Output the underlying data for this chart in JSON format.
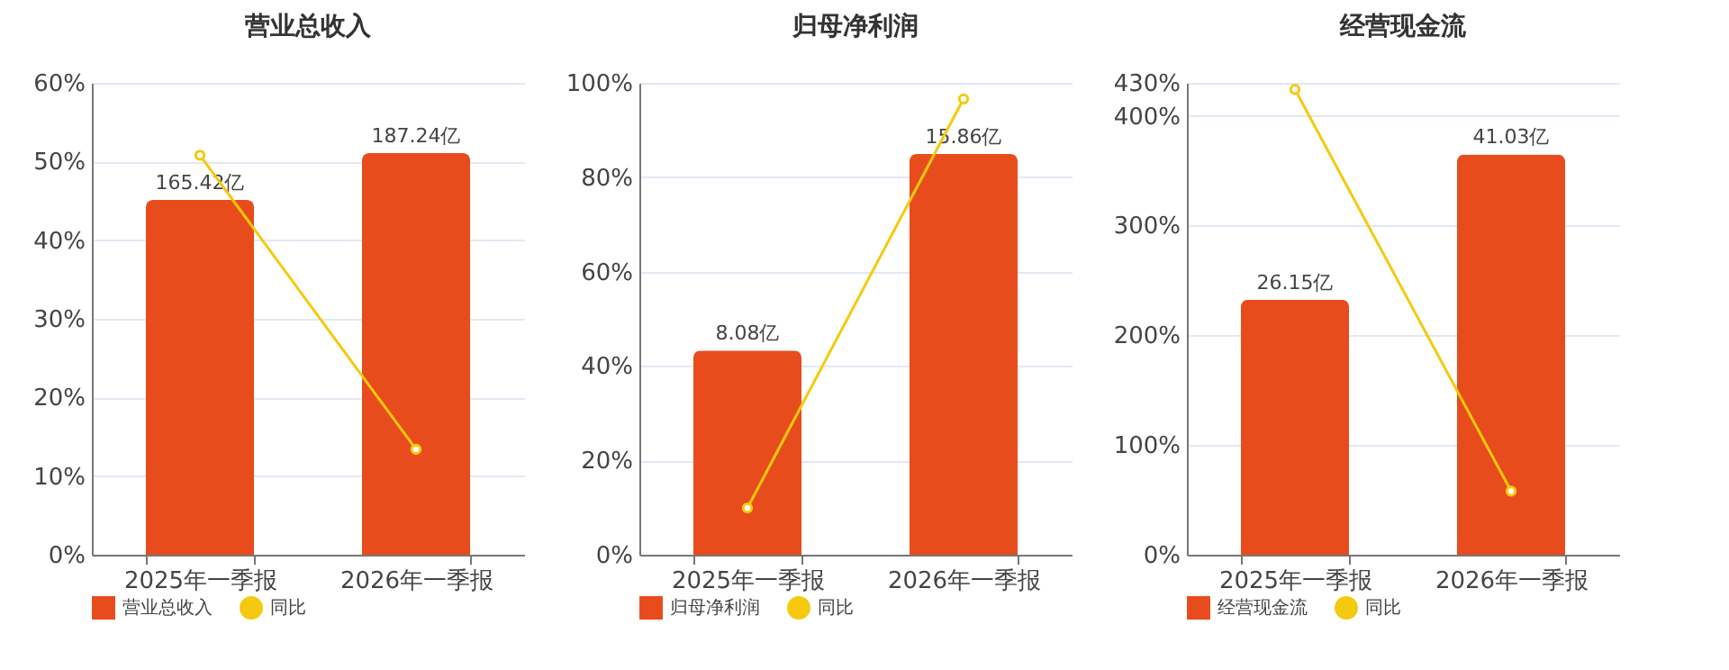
{
  "chart_data": [
    {
      "type": "bar",
      "title": "营业总收入",
      "categories": [
        "2025年一季报",
        "2026年一季报"
      ],
      "series": [
        {
          "name": "营业总收入",
          "color": "#e84c1c",
          "values": [
            165.42,
            187.24
          ],
          "value_labels": [
            "165.42亿",
            "187.24亿"
          ],
          "axis": "y2"
        },
        {
          "name": "同比",
          "type": "line",
          "color": "#f5c90f",
          "values": [
            50.8,
            13.4
          ]
        }
      ],
      "ylim": [
        0,
        60
      ],
      "yticks": [
        {
          "value": 0,
          "label": "0%"
        },
        {
          "value": 10,
          "label": "10%"
        },
        {
          "value": 20,
          "label": "20%"
        },
        {
          "value": 30,
          "label": "30%"
        },
        {
          "value": 40,
          "label": "40%"
        },
        {
          "value": 50,
          "label": "50%"
        },
        {
          "value": 60,
          "label": "60%"
        }
      ],
      "y2lim": [
        0,
        220
      ],
      "tick_labels": "x",
      "grid": "y",
      "legend": "bottom",
      "marker": "circle"
    },
    {
      "type": "bar",
      "title": "归母净利润",
      "categories": [
        "2025年一季报",
        "2026年一季报"
      ],
      "series": [
        {
          "name": "归母净利润",
          "color": "#e84c1c",
          "values": [
            8.08,
            15.86
          ],
          "value_labels": [
            "8.08亿",
            "15.86亿"
          ],
          "axis": "y2"
        },
        {
          "name": "同比",
          "type": "line",
          "color": "#f5c90f",
          "values": [
            9.9,
            96.6
          ]
        }
      ],
      "ylim": [
        0,
        100
      ],
      "yticks": [
        {
          "value": 0,
          "label": "0%"
        },
        {
          "value": 20,
          "label": "20%"
        },
        {
          "value": 40,
          "label": "40%"
        },
        {
          "value": 60,
          "label": "60%"
        },
        {
          "value": 80,
          "label": "80%"
        },
        {
          "value": 100,
          "label": "100%"
        }
      ],
      "y2lim": [
        0,
        18.68
      ],
      "tick_labels": "x",
      "grid": "y",
      "legend": "bottom",
      "marker": "circle"
    },
    {
      "type": "bar",
      "title": "经营现金流",
      "categories": [
        "2025年一季报",
        "2026年一季报"
      ],
      "series": [
        {
          "name": "经营现金流",
          "color": "#e84c1c",
          "values": [
            26.15,
            41.03
          ],
          "value_labels": [
            "26.15亿",
            "41.03亿"
          ],
          "axis": "y2"
        },
        {
          "name": "同比",
          "type": "line",
          "color": "#f5c90f",
          "values": [
            424,
            58
          ]
        }
      ],
      "ylim": [
        0,
        430
      ],
      "yticks": [
        {
          "value": 0,
          "label": "0%"
        },
        {
          "value": 100,
          "label": "100%"
        },
        {
          "value": 200,
          "label": "200%"
        },
        {
          "value": 300,
          "label": "300%"
        },
        {
          "value": 400,
          "label": "400%"
        },
        {
          "value": 430,
          "label": "430%"
        }
      ],
      "y2lim": [
        0,
        48.36
      ],
      "tick_labels": "x",
      "grid": "y",
      "legend": "bottom",
      "marker": "circle"
    }
  ]
}
